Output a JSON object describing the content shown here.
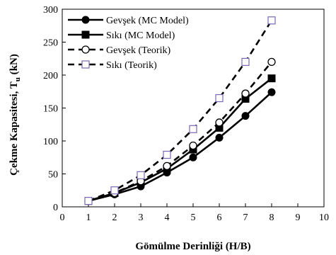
{
  "chart_data": {
    "type": "line",
    "xlabel": "Gömülme Derinliği (H/B)",
    "ylabel_main": "Çekme Kapasitesi, T",
    "ylabel_sub": "u",
    "ylabel_unit": " (kN)",
    "xlim": [
      0,
      10
    ],
    "ylim": [
      0,
      300
    ],
    "xticks": [
      0,
      1,
      2,
      3,
      4,
      5,
      6,
      7,
      8,
      9,
      10
    ],
    "yticks": [
      0,
      50,
      100,
      150,
      200,
      250,
      300
    ],
    "grid": false,
    "legend_position": "top-left",
    "x": [
      1,
      2,
      3,
      4,
      5,
      6,
      7,
      8
    ],
    "series": [
      {
        "name": "Gevşek (MC Model)",
        "values": [
          9,
          19,
          31,
          52,
          75,
          105,
          138,
          174
        ],
        "color": "#000000",
        "dash": "solid",
        "marker": "filled-circle"
      },
      {
        "name": "Sıkı (MC Model)",
        "values": [
          9,
          21,
          37,
          58,
          87,
          120,
          164,
          195
        ],
        "color": "#000000",
        "dash": "solid",
        "marker": "filled-square"
      },
      {
        "name": "Gevşek (Teorik)",
        "values": [
          9,
          21,
          39,
          62,
          93,
          128,
          172,
          220
        ],
        "color": "#000000",
        "dash": "dashed",
        "marker": "open-circle"
      },
      {
        "name": "Sıkı (Teorik)",
        "values": [
          9,
          25,
          48,
          79,
          118,
          165,
          220,
          283
        ],
        "color": "#000000",
        "dash": "dashed",
        "marker": "open-square",
        "marker_color": "#7b68b5"
      }
    ]
  }
}
